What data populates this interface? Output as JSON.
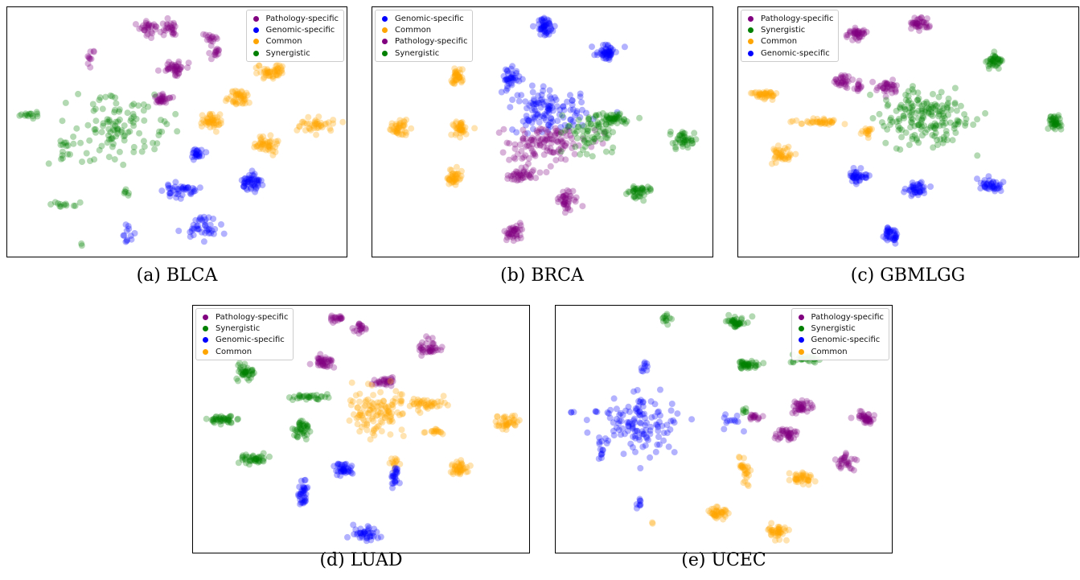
{
  "colors": {
    "Pathology-specific": "#800080",
    "Genomic-specific": "#0000ff",
    "Common": "#ffa500",
    "Synergistic": "#008000"
  },
  "chart_data": [
    {
      "type": "scatter",
      "caption": "(a) BLCA",
      "legend": [
        "Pathology-specific",
        "Genomic-specific",
        "Common",
        "Synergistic"
      ],
      "legend_position": "top-right",
      "xlim": [
        0,
        100
      ],
      "ylim": [
        0,
        100
      ],
      "grid": false,
      "axes_ticks": false,
      "clusters": [
        {
          "label": "Pathology-specific",
          "x": 42,
          "y": 91,
          "sx": 1.6,
          "sy": 1.6,
          "n": 30
        },
        {
          "label": "Pathology-specific",
          "x": 48,
          "y": 91,
          "sx": 1.3,
          "sy": 1.4,
          "n": 24
        },
        {
          "label": "Pathology-specific",
          "x": 60,
          "y": 88,
          "sx": 0.9,
          "sy": 1.4,
          "n": 14
        },
        {
          "label": "Pathology-specific",
          "x": 61,
          "y": 82,
          "sx": 0.9,
          "sy": 1.6,
          "n": 14
        },
        {
          "label": "Pathology-specific",
          "x": 25,
          "y": 79,
          "sx": 0.8,
          "sy": 1.4,
          "n": 10
        },
        {
          "label": "Pathology-specific",
          "x": 49,
          "y": 76,
          "sx": 2.0,
          "sy": 1.4,
          "n": 40
        },
        {
          "label": "Pathology-specific",
          "x": 46,
          "y": 63,
          "sx": 2.0,
          "sy": 1.1,
          "n": 30
        },
        {
          "label": "Common",
          "x": 78,
          "y": 74,
          "sx": 2.0,
          "sy": 1.6,
          "n": 50
        },
        {
          "label": "Common",
          "x": 68,
          "y": 64,
          "sx": 1.6,
          "sy": 1.6,
          "n": 45
        },
        {
          "label": "Common",
          "x": 60,
          "y": 54,
          "sx": 1.6,
          "sy": 1.6,
          "n": 45
        },
        {
          "label": "Common",
          "x": 76,
          "y": 45,
          "sx": 1.8,
          "sy": 1.6,
          "n": 45
        },
        {
          "label": "Common",
          "x": 91,
          "y": 53,
          "sx": 2.4,
          "sy": 1.4,
          "n": 40
        },
        {
          "label": "Synergistic",
          "x": 33,
          "y": 52,
          "sx": 7.0,
          "sy": 6.5,
          "n": 110
        },
        {
          "label": "Synergistic",
          "x": 6,
          "y": 57,
          "sx": 1.8,
          "sy": 1.0,
          "n": 14
        },
        {
          "label": "Synergistic",
          "x": 17,
          "y": 42,
          "sx": 1.4,
          "sy": 2.5,
          "n": 12
        },
        {
          "label": "Synergistic",
          "x": 35,
          "y": 26,
          "sx": 0.6,
          "sy": 0.8,
          "n": 6
        },
        {
          "label": "Synergistic",
          "x": 16,
          "y": 21,
          "sx": 2.3,
          "sy": 0.5,
          "n": 12
        },
        {
          "label": "Synergistic",
          "x": 22,
          "y": 5,
          "sx": 0.3,
          "sy": 0.3,
          "n": 2
        },
        {
          "label": "Genomic-specific",
          "x": 56,
          "y": 41,
          "sx": 1.0,
          "sy": 1.2,
          "n": 25
        },
        {
          "label": "Genomic-specific",
          "x": 72,
          "y": 30,
          "sx": 1.6,
          "sy": 1.6,
          "n": 50
        },
        {
          "label": "Genomic-specific",
          "x": 51,
          "y": 27,
          "sx": 2.8,
          "sy": 1.4,
          "n": 40
        },
        {
          "label": "Genomic-specific",
          "x": 57,
          "y": 12,
          "sx": 2.8,
          "sy": 2.5,
          "n": 40
        },
        {
          "label": "Genomic-specific",
          "x": 36,
          "y": 9,
          "sx": 1.0,
          "sy": 1.8,
          "n": 12
        }
      ]
    },
    {
      "type": "scatter",
      "caption": "(b) BRCA",
      "legend": [
        "Genomic-specific",
        "Common",
        "Pathology-specific",
        "Synergistic"
      ],
      "legend_position": "top-left",
      "xlim": [
        0,
        100
      ],
      "ylim": [
        0,
        100
      ],
      "grid": false,
      "axes_ticks": false,
      "clusters": [
        {
          "label": "Genomic-specific",
          "x": 51,
          "y": 92,
          "sx": 1.4,
          "sy": 1.6,
          "n": 50
        },
        {
          "label": "Genomic-specific",
          "x": 69,
          "y": 82,
          "sx": 1.6,
          "sy": 1.4,
          "n": 50
        },
        {
          "label": "Genomic-specific",
          "x": 41,
          "y": 72,
          "sx": 1.4,
          "sy": 1.8,
          "n": 35
        },
        {
          "label": "Genomic-specific",
          "x": 52,
          "y": 58,
          "sx": 6.0,
          "sy": 5.0,
          "n": 120
        },
        {
          "label": "Pathology-specific",
          "x": 51,
          "y": 45,
          "sx": 6.0,
          "sy": 4.0,
          "n": 120
        },
        {
          "label": "Pathology-specific",
          "x": 44,
          "y": 33,
          "sx": 2.5,
          "sy": 1.5,
          "n": 40
        },
        {
          "label": "Pathology-specific",
          "x": 57,
          "y": 23,
          "sx": 1.3,
          "sy": 2.0,
          "n": 40
        },
        {
          "label": "Pathology-specific",
          "x": 42,
          "y": 10,
          "sx": 1.4,
          "sy": 1.4,
          "n": 40
        },
        {
          "label": "Synergistic",
          "x": 64,
          "y": 49,
          "sx": 3.5,
          "sy": 4.5,
          "n": 70
        },
        {
          "label": "Synergistic",
          "x": 71,
          "y": 55,
          "sx": 2.5,
          "sy": 1.0,
          "n": 40
        },
        {
          "label": "Synergistic",
          "x": 91,
          "y": 47,
          "sx": 1.6,
          "sy": 1.6,
          "n": 40
        },
        {
          "label": "Synergistic",
          "x": 78,
          "y": 26,
          "sx": 1.4,
          "sy": 1.6,
          "n": 40
        },
        {
          "label": "Common",
          "x": 25,
          "y": 72,
          "sx": 1.2,
          "sy": 1.6,
          "n": 40
        },
        {
          "label": "Common",
          "x": 8,
          "y": 52,
          "sx": 1.4,
          "sy": 1.4,
          "n": 40
        },
        {
          "label": "Common",
          "x": 26,
          "y": 51,
          "sx": 1.4,
          "sy": 1.4,
          "n": 40
        },
        {
          "label": "Common",
          "x": 24,
          "y": 32,
          "sx": 1.2,
          "sy": 1.6,
          "n": 40
        }
      ]
    },
    {
      "type": "scatter",
      "caption": "(c) GBMLGG",
      "legend": [
        "Pathology-specific",
        "Synergistic",
        "Common",
        "Genomic-specific"
      ],
      "legend_position": "top-left",
      "xlim": [
        0,
        100
      ],
      "ylim": [
        0,
        100
      ],
      "grid": false,
      "axes_ticks": false,
      "clusters": [
        {
          "label": "Pathology-specific",
          "x": 35,
          "y": 89,
          "sx": 1.4,
          "sy": 1.2,
          "n": 40
        },
        {
          "label": "Pathology-specific",
          "x": 53,
          "y": 93,
          "sx": 1.2,
          "sy": 1.4,
          "n": 40
        },
        {
          "label": "Pathology-specific",
          "x": 31,
          "y": 70,
          "sx": 1.4,
          "sy": 1.2,
          "n": 30
        },
        {
          "label": "Pathology-specific",
          "x": 35,
          "y": 68,
          "sx": 0.8,
          "sy": 1.0,
          "n": 12
        },
        {
          "label": "Pathology-specific",
          "x": 44,
          "y": 68,
          "sx": 1.3,
          "sy": 1.4,
          "n": 35
        },
        {
          "label": "Synergistic",
          "x": 55,
          "y": 56,
          "sx": 6.0,
          "sy": 6.0,
          "n": 180
        },
        {
          "label": "Synergistic",
          "x": 75,
          "y": 78,
          "sx": 1.4,
          "sy": 1.2,
          "n": 40
        },
        {
          "label": "Synergistic",
          "x": 93,
          "y": 54,
          "sx": 1.2,
          "sy": 1.4,
          "n": 40
        },
        {
          "label": "Common",
          "x": 8,
          "y": 65,
          "sx": 1.8,
          "sy": 1.0,
          "n": 40
        },
        {
          "label": "Common",
          "x": 24,
          "y": 54,
          "sx": 4.2,
          "sy": 0.6,
          "n": 40
        },
        {
          "label": "Common",
          "x": 38,
          "y": 50,
          "sx": 0.8,
          "sy": 1.4,
          "n": 16
        },
        {
          "label": "Common",
          "x": 13,
          "y": 41,
          "sx": 1.4,
          "sy": 1.4,
          "n": 40
        },
        {
          "label": "Genomic-specific",
          "x": 35,
          "y": 32,
          "sx": 1.4,
          "sy": 1.4,
          "n": 40
        },
        {
          "label": "Genomic-specific",
          "x": 52,
          "y": 27,
          "sx": 1.6,
          "sy": 1.2,
          "n": 40
        },
        {
          "label": "Genomic-specific",
          "x": 74,
          "y": 29,
          "sx": 1.6,
          "sy": 1.4,
          "n": 40
        },
        {
          "label": "Genomic-specific",
          "x": 45,
          "y": 9,
          "sx": 1.4,
          "sy": 1.4,
          "n": 40
        }
      ]
    },
    {
      "type": "scatter",
      "caption": "(d) LUAD",
      "legend": [
        "Pathology-specific",
        "Synergistic",
        "Genomic-specific",
        "Common"
      ],
      "legend_position": "top-left",
      "xlim": [
        0,
        100
      ],
      "ylim": [
        0,
        100
      ],
      "grid": false,
      "axes_ticks": false,
      "clusters": [
        {
          "label": "Pathology-specific",
          "x": 43,
          "y": 95,
          "sx": 1.0,
          "sy": 0.8,
          "n": 20
        },
        {
          "label": "Pathology-specific",
          "x": 50,
          "y": 91,
          "sx": 1.0,
          "sy": 1.0,
          "n": 20
        },
        {
          "label": "Pathology-specific",
          "x": 70,
          "y": 83,
          "sx": 1.6,
          "sy": 1.6,
          "n": 40
        },
        {
          "label": "Pathology-specific",
          "x": 39,
          "y": 77,
          "sx": 1.4,
          "sy": 1.4,
          "n": 40
        },
        {
          "label": "Pathology-specific",
          "x": 57,
          "y": 69,
          "sx": 1.8,
          "sy": 1.0,
          "n": 30
        },
        {
          "label": "Synergistic",
          "x": 16,
          "y": 73,
          "sx": 1.2,
          "sy": 1.6,
          "n": 40
        },
        {
          "label": "Synergistic",
          "x": 35,
          "y": 63,
          "sx": 3.0,
          "sy": 0.6,
          "n": 30
        },
        {
          "label": "Synergistic",
          "x": 9,
          "y": 54,
          "sx": 2.0,
          "sy": 0.8,
          "n": 40
        },
        {
          "label": "Synergistic",
          "x": 32,
          "y": 50,
          "sx": 1.2,
          "sy": 1.8,
          "n": 40
        },
        {
          "label": "Synergistic",
          "x": 19,
          "y": 38,
          "sx": 2.0,
          "sy": 1.0,
          "n": 40
        },
        {
          "label": "Common",
          "x": 55,
          "y": 57,
          "sx": 4.5,
          "sy": 4.5,
          "n": 120
        },
        {
          "label": "Common",
          "x": 70,
          "y": 60,
          "sx": 2.5,
          "sy": 1.4,
          "n": 40
        },
        {
          "label": "Common",
          "x": 72,
          "y": 49,
          "sx": 1.2,
          "sy": 0.6,
          "n": 16
        },
        {
          "label": "Common",
          "x": 93,
          "y": 53,
          "sx": 1.6,
          "sy": 1.4,
          "n": 40
        },
        {
          "label": "Common",
          "x": 79,
          "y": 34,
          "sx": 1.2,
          "sy": 1.4,
          "n": 40
        },
        {
          "label": "Common",
          "x": 60,
          "y": 37,
          "sx": 0.6,
          "sy": 1.2,
          "n": 12
        },
        {
          "label": "Genomic-specific",
          "x": 45,
          "y": 34,
          "sx": 1.4,
          "sy": 1.2,
          "n": 40
        },
        {
          "label": "Genomic-specific",
          "x": 60,
          "y": 31,
          "sx": 0.6,
          "sy": 2.0,
          "n": 25
        },
        {
          "label": "Genomic-specific",
          "x": 33,
          "y": 24,
          "sx": 0.8,
          "sy": 2.2,
          "n": 35
        },
        {
          "label": "Genomic-specific",
          "x": 51,
          "y": 8,
          "sx": 2.4,
          "sy": 1.4,
          "n": 40
        }
      ]
    },
    {
      "type": "scatter",
      "caption": "(e) UCEC",
      "legend": [
        "Pathology-specific",
        "Synergistic",
        "Genomic-specific",
        "Common"
      ],
      "legend_position": "top-right",
      "xlim": [
        0,
        100
      ],
      "ylim": [
        0,
        100
      ],
      "grid": false,
      "axes_ticks": false,
      "clusters": [
        {
          "label": "Synergistic",
          "x": 33,
          "y": 94,
          "sx": 0.8,
          "sy": 0.8,
          "n": 12
        },
        {
          "label": "Synergistic",
          "x": 54,
          "y": 93,
          "sx": 1.6,
          "sy": 1.2,
          "n": 40
        },
        {
          "label": "Synergistic",
          "x": 57,
          "y": 76,
          "sx": 1.6,
          "sy": 1.0,
          "n": 40
        },
        {
          "label": "Synergistic",
          "x": 74,
          "y": 78,
          "sx": 2.0,
          "sy": 0.8,
          "n": 30
        },
        {
          "label": "Synergistic",
          "x": 56,
          "y": 57,
          "sx": 0.6,
          "sy": 0.6,
          "n": 6
        },
        {
          "label": "Pathology-specific",
          "x": 59,
          "y": 55,
          "sx": 0.9,
          "sy": 0.8,
          "n": 16
        },
        {
          "label": "Pathology-specific",
          "x": 73,
          "y": 59,
          "sx": 1.6,
          "sy": 1.4,
          "n": 40
        },
        {
          "label": "Pathology-specific",
          "x": 92,
          "y": 55,
          "sx": 1.6,
          "sy": 1.4,
          "n": 40
        },
        {
          "label": "Pathology-specific",
          "x": 69,
          "y": 48,
          "sx": 1.6,
          "sy": 1.2,
          "n": 40
        },
        {
          "label": "Pathology-specific",
          "x": 86,
          "y": 37,
          "sx": 1.4,
          "sy": 1.8,
          "n": 30
        },
        {
          "label": "Genomic-specific",
          "x": 25,
          "y": 53,
          "sx": 6.0,
          "sy": 6.0,
          "n": 130
        },
        {
          "label": "Genomic-specific",
          "x": 5,
          "y": 57,
          "sx": 0.3,
          "sy": 0.3,
          "n": 3
        },
        {
          "label": "Genomic-specific",
          "x": 12,
          "y": 57,
          "sx": 0.2,
          "sy": 0.2,
          "n": 2
        },
        {
          "label": "Genomic-specific",
          "x": 27,
          "y": 75,
          "sx": 0.8,
          "sy": 2.0,
          "n": 10
        },
        {
          "label": "Genomic-specific",
          "x": 52,
          "y": 53,
          "sx": 1.4,
          "sy": 2.0,
          "n": 12
        },
        {
          "label": "Genomic-specific",
          "x": 14,
          "y": 41,
          "sx": 0.6,
          "sy": 2.0,
          "n": 8
        },
        {
          "label": "Genomic-specific",
          "x": 25,
          "y": 20,
          "sx": 0.6,
          "sy": 1.0,
          "n": 8
        },
        {
          "label": "Common",
          "x": 56,
          "y": 33,
          "sx": 0.8,
          "sy": 3.0,
          "n": 30
        },
        {
          "label": "Common",
          "x": 73,
          "y": 30,
          "sx": 1.8,
          "sy": 1.2,
          "n": 40
        },
        {
          "label": "Common",
          "x": 48,
          "y": 16,
          "sx": 1.6,
          "sy": 1.4,
          "n": 40
        },
        {
          "label": "Common",
          "x": 66,
          "y": 9,
          "sx": 1.4,
          "sy": 1.4,
          "n": 40
        },
        {
          "label": "Common",
          "x": 29,
          "y": 12,
          "sx": 0.3,
          "sy": 0.3,
          "n": 2
        }
      ]
    }
  ]
}
